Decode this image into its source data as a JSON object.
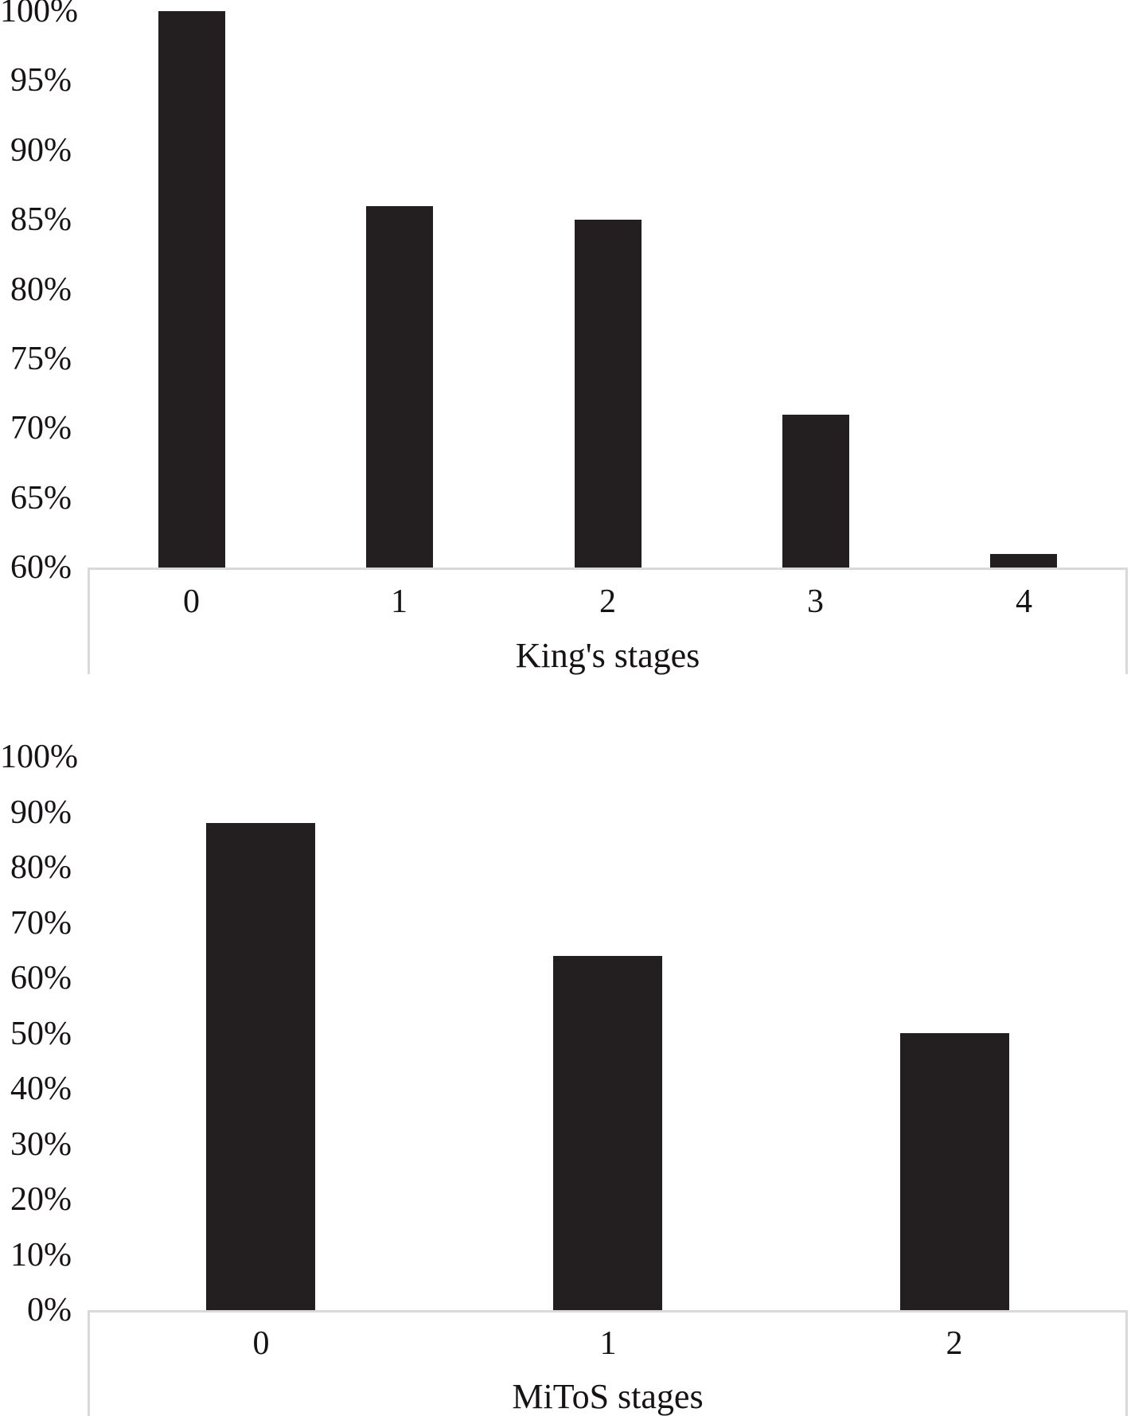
{
  "figure": {
    "description": "Two-panel vertical bar figure, black bars on white background, no gridlines, no legend",
    "background_color": "#ffffff"
  },
  "chart_data": [
    {
      "type": "bar",
      "title": "",
      "xlabel": "King's stages",
      "ylabel": "",
      "categories": [
        "0",
        "1",
        "2",
        "3",
        "4"
      ],
      "values": [
        100,
        86,
        85,
        71,
        61
      ],
      "unit": "%",
      "ylim": [
        60,
        100
      ],
      "y_step": 5,
      "y_tick_labels": [
        "100%",
        "95%",
        "90%",
        "85%",
        "80%",
        "75%",
        "70%",
        "65%",
        "60%"
      ],
      "grid": false,
      "legend": "none",
      "bar_color": "#231f20",
      "axis_line_color": "#d9d9d9",
      "text_color": "#161215"
    },
    {
      "type": "bar",
      "title": "",
      "xlabel": "MiToS stages",
      "ylabel": "",
      "categories": [
        "0",
        "1",
        "2"
      ],
      "values": [
        88,
        64,
        50
      ],
      "unit": "%",
      "ylim": [
        0,
        100
      ],
      "y_step": 10,
      "y_tick_labels": [
        "100%",
        "90%",
        "80%",
        "70%",
        "60%",
        "50%",
        "40%",
        "30%",
        "20%",
        "10%",
        "0%"
      ],
      "grid": false,
      "legend": "none",
      "bar_color": "#231f20",
      "axis_line_color": "#d9d9d9",
      "text_color": "#161215"
    }
  ]
}
